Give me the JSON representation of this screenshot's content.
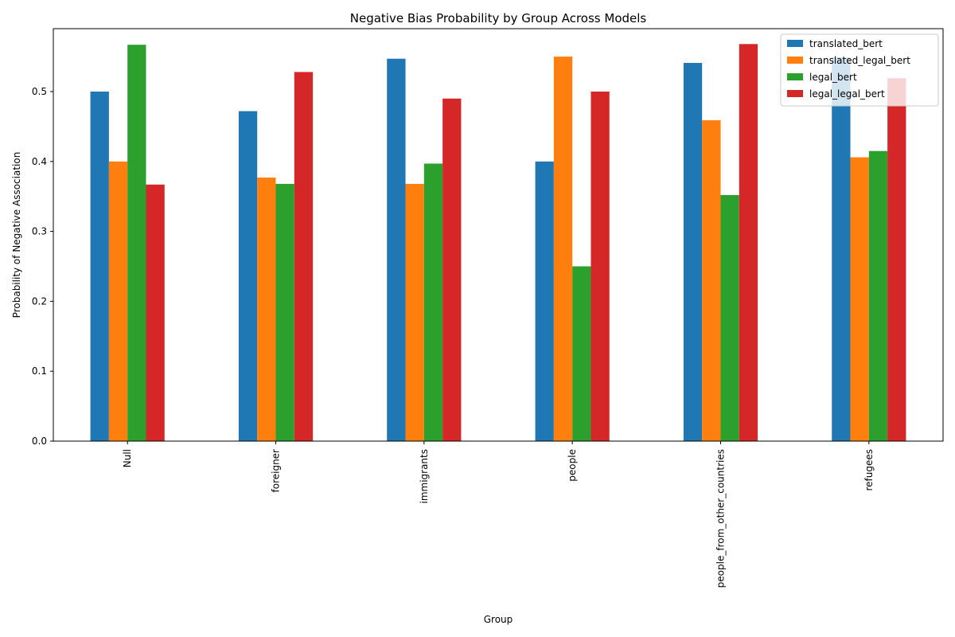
{
  "chart_data": {
    "type": "bar",
    "title": "Negative Bias Probability by Group Across Models",
    "xlabel": "Group",
    "ylabel": "Probability of Negative Association",
    "categories": [
      "Null",
      "foreigner",
      "immigrants",
      "people",
      "people_from_other_countries",
      "refugees"
    ],
    "series": [
      {
        "name": "translated_bert",
        "color": "#1f77b4",
        "values": [
          0.5,
          0.472,
          0.547,
          0.4,
          0.541,
          0.549
        ]
      },
      {
        "name": "translated_legal_bert",
        "color": "#ff7f0e",
        "values": [
          0.4,
          0.377,
          0.368,
          0.55,
          0.459,
          0.406
        ]
      },
      {
        "name": "legal_bert",
        "color": "#2ca02c",
        "values": [
          0.567,
          0.368,
          0.397,
          0.25,
          0.352,
          0.415
        ]
      },
      {
        "name": "legal_legal_bert",
        "color": "#d62728",
        "values": [
          0.367,
          0.528,
          0.49,
          0.5,
          0.568,
          0.519
        ]
      }
    ],
    "ylim": [
      0,
      0.59
    ],
    "yticks": [
      0.0,
      0.1,
      0.2,
      0.3,
      0.4,
      0.5
    ],
    "ytick_labels": [
      "0.0",
      "0.1",
      "0.2",
      "0.3",
      "0.4",
      "0.5"
    ],
    "grid": false,
    "legend_position": "top-right"
  }
}
